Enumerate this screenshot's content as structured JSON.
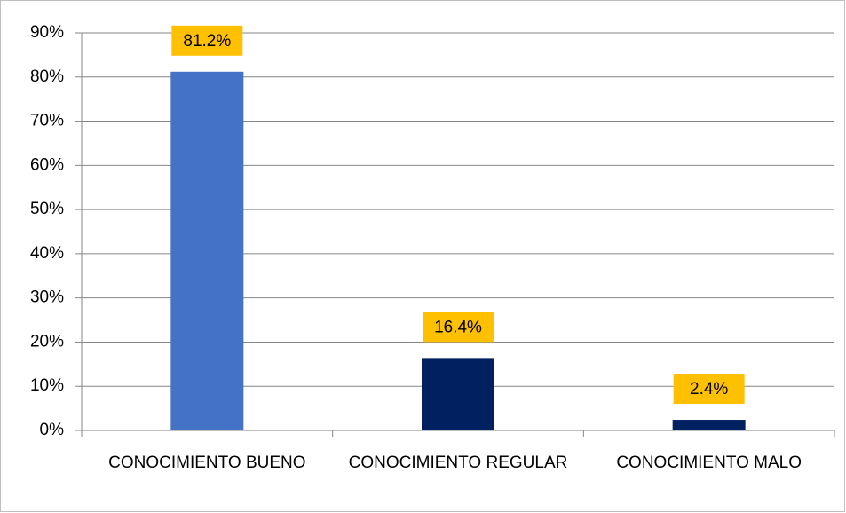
{
  "chart_data": {
    "type": "bar",
    "categories": [
      "CONOCIMIENTO BUENO",
      "CONOCIMIENTO REGULAR",
      "CONOCIMIENTO MALO"
    ],
    "values": [
      81.2,
      16.4,
      2.4
    ],
    "value_labels": [
      "81.2%",
      "16.4%",
      "2.4%"
    ],
    "colors": [
      "#4472c4",
      "#002060",
      "#002060"
    ],
    "label_color": "#ffc000",
    "ylim": [
      0,
      90
    ],
    "yticks": [
      {
        "value": 0,
        "label": "0%"
      },
      {
        "value": 10,
        "label": "10%"
      },
      {
        "value": 20,
        "label": "20%"
      },
      {
        "value": 30,
        "label": "30%"
      },
      {
        "value": 40,
        "label": "40%"
      },
      {
        "value": 50,
        "label": "50%"
      },
      {
        "value": 60,
        "label": "60%"
      },
      {
        "value": 70,
        "label": "70%"
      },
      {
        "value": 80,
        "label": "80%"
      },
      {
        "value": 90,
        "label": "90%"
      }
    ],
    "grid": true
  }
}
